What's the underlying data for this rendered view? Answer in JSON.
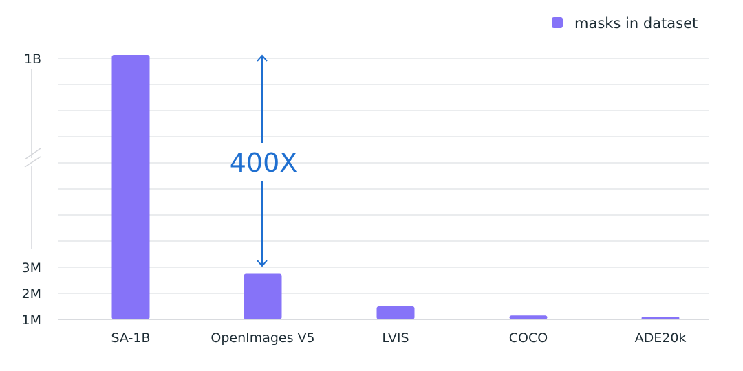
{
  "chart_data": {
    "type": "bar",
    "categories": [
      "SA-1B",
      "OpenImages V5",
      "LVIS",
      "COCO",
      "ADE20k"
    ],
    "series": [
      {
        "name": "masks in dataset",
        "values": [
          1100,
          2.75,
          1.5,
          1.15,
          1.1
        ]
      }
    ],
    "value_unit": "millions of masks",
    "y_ticks": [
      {
        "label": "1M",
        "value": 1
      },
      {
        "label": "2M",
        "value": 2
      },
      {
        "label": "3M",
        "value": 3
      },
      {
        "label": "1B",
        "value": 1000
      }
    ],
    "y_axis_break": true,
    "ylim": [
      1,
      1000
    ],
    "grid": true,
    "legend_position": "top-right",
    "annotation": {
      "text": "400X",
      "from": "OpenImages V5",
      "to": "SA-1B"
    },
    "colors": {
      "bar": "#8673f8",
      "annotation": "#1f6fd0",
      "grid": "#e3e5e8",
      "text": "#1c2b33"
    }
  }
}
